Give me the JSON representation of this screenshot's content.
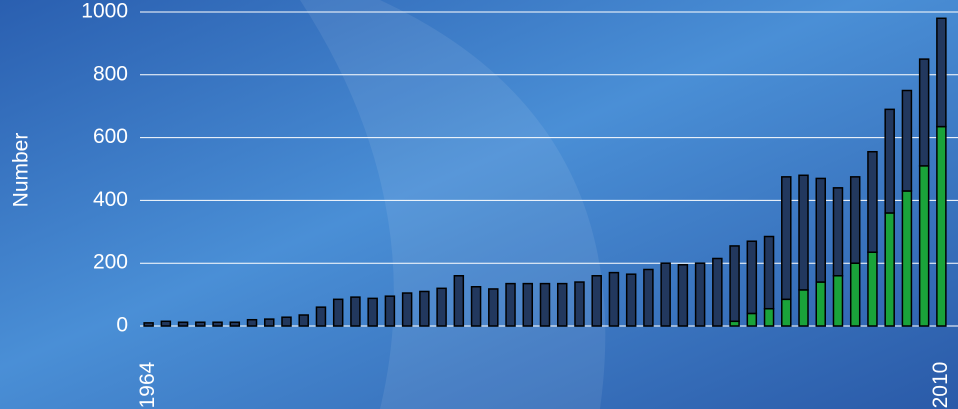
{
  "chart_data": {
    "type": "stacked_bar",
    "y_label": "Number",
    "categories": [
      "1964",
      null,
      null,
      null,
      null,
      null,
      null,
      null,
      null,
      null,
      null,
      null,
      null,
      null,
      null,
      null,
      null,
      null,
      null,
      null,
      null,
      null,
      null,
      null,
      null,
      null,
      null,
      null,
      null,
      null,
      null,
      null,
      null,
      null,
      null,
      null,
      null,
      null,
      null,
      null,
      null,
      null,
      null,
      null,
      null,
      null,
      "2010"
    ],
    "series": [
      {
        "color": "#1aa33a",
        "values": [
          0,
          0,
          0,
          0,
          0,
          0,
          0,
          0,
          0,
          0,
          0,
          0,
          0,
          0,
          0,
          0,
          0,
          0,
          0,
          0,
          0,
          0,
          0,
          0,
          0,
          0,
          0,
          0,
          0,
          0,
          0,
          0,
          0,
          0,
          15,
          40,
          55,
          85,
          115,
          140,
          160,
          200,
          235,
          360,
          430,
          510,
          635
        ]
      },
      {
        "color": "#22385e",
        "values": [
          10,
          15,
          12,
          12,
          12,
          12,
          20,
          22,
          28,
          35,
          60,
          85,
          92,
          88,
          95,
          105,
          110,
          120,
          160,
          125,
          118,
          135,
          135,
          135,
          135,
          140,
          160,
          170,
          165,
          180,
          200,
          195,
          200,
          215,
          240,
          230,
          230,
          390,
          365,
          330,
          280,
          275,
          320,
          330,
          320,
          340,
          345
        ]
      }
    ],
    "ylim": [
      0,
      1000
    ],
    "yticks": [
      0,
      200,
      400,
      600,
      800,
      1000
    ],
    "grid": true
  }
}
